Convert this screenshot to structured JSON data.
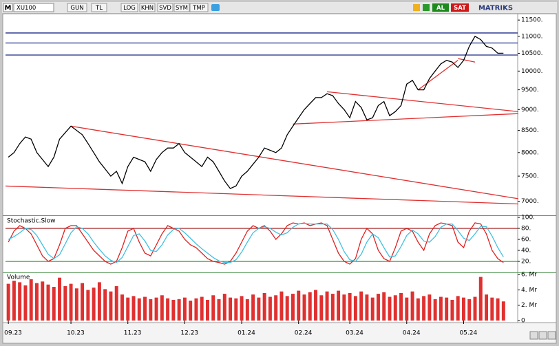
{
  "toolbar": {
    "logo": "M",
    "symbol": "XU100",
    "buttons": [
      "GUN",
      "TL",
      "LOG",
      "KHN",
      "SVD",
      "SYM",
      "TMP"
    ],
    "buy": "AL",
    "sell": "SAT",
    "brand": "MATRIKS"
  },
  "chart_data": [
    {
      "type": "line",
      "log_scale": true,
      "color": "#000000",
      "categories": [
        "09.23",
        null,
        null,
        null,
        null,
        null,
        null,
        null,
        null,
        null,
        null,
        "10.23",
        null,
        null,
        null,
        null,
        null,
        null,
        null,
        null,
        null,
        "11.23",
        null,
        null,
        null,
        null,
        null,
        null,
        null,
        null,
        null,
        "12.23",
        null,
        null,
        null,
        null,
        null,
        null,
        null,
        null,
        null,
        "01.24",
        null,
        null,
        null,
        null,
        null,
        null,
        null,
        null,
        null,
        "02.24",
        null,
        null,
        null,
        null,
        null,
        null,
        null,
        null,
        "03.24",
        null,
        null,
        null,
        null,
        null,
        null,
        null,
        null,
        null,
        "04.24",
        null,
        null,
        null,
        null,
        null,
        null,
        null,
        null,
        null,
        "05.24",
        null,
        null,
        null,
        null,
        null,
        null,
        null
      ],
      "values": [
        7900,
        8000,
        8200,
        8350,
        8300,
        8000,
        7850,
        7700,
        7900,
        8300,
        8450,
        8600,
        8500,
        8400,
        8200,
        8000,
        7800,
        7650,
        7500,
        7600,
        7350,
        7700,
        7900,
        7850,
        7800,
        7600,
        7850,
        8000,
        8100,
        8100,
        8200,
        8000,
        7900,
        7800,
        7700,
        7900,
        7800,
        7600,
        7400,
        7250,
        7300,
        7500,
        7600,
        7750,
        7900,
        8100,
        8050,
        8000,
        8100,
        8400,
        8600,
        8800,
        9000,
        9150,
        9300,
        9300,
        9400,
        9350,
        9150,
        9000,
        8800,
        9200,
        9050,
        8750,
        8800,
        9100,
        9200,
        8850,
        8950,
        9100,
        9650,
        9750,
        9500,
        9500,
        9800,
        10000,
        10200,
        10300,
        10250,
        10100,
        10300,
        10700,
        11000,
        10900,
        10700,
        10650,
        10500,
        10500
      ],
      "ylim": [
        6750,
        11700
      ],
      "yticks": [
        {
          "value": 11500,
          "label": "11500."
        },
        {
          "value": 11000,
          "label": "11000."
        },
        {
          "value": 10500,
          "label": "10500."
        },
        {
          "value": 10000,
          "label": "10000."
        },
        {
          "value": 9500,
          "label": "9500."
        },
        {
          "value": 9000,
          "label": "9000."
        },
        {
          "value": 8500,
          "label": "8500."
        },
        {
          "value": 8000,
          "label": "8000."
        },
        {
          "value": 7500,
          "label": "7500."
        },
        {
          "value": 7000,
          "label": "7000."
        }
      ],
      "hlines": [
        {
          "value": 11100,
          "color": "#1c2a88"
        },
        {
          "value": 10800,
          "color": "#1c2a88"
        },
        {
          "value": 10450,
          "color": "#1c2a88"
        }
      ],
      "trendlines": [
        {
          "color": "#e03030",
          "points": [
            [
              11,
              8600
            ],
            [
              89.6,
              7050
            ]
          ]
        },
        {
          "color": "#e03030",
          "points": [
            [
              -0.5,
              7300
            ],
            [
              89.6,
              6950
            ]
          ]
        },
        {
          "color": "#e03030",
          "points": [
            [
              56,
              9450
            ],
            [
              89.6,
              8950
            ]
          ]
        },
        {
          "color": "#e03030",
          "points": [
            [
              50,
              8650
            ],
            [
              89.6,
              8900
            ]
          ]
        },
        {
          "color": "#e03030",
          "points": [
            [
              72,
              9500
            ],
            [
              79,
              10300
            ]
          ]
        },
        {
          "color": "#e03030",
          "points": [
            [
              79,
              10350
            ],
            [
              82,
              10250
            ]
          ]
        }
      ]
    },
    {
      "type": "line",
      "title": "Stochastic.Slow",
      "series": [
        {
          "color": "#e02020",
          "values": [
            55,
            75,
            85,
            80,
            70,
            50,
            30,
            20,
            25,
            50,
            80,
            85,
            85,
            70,
            55,
            40,
            30,
            20,
            15,
            20,
            45,
            75,
            80,
            55,
            35,
            30,
            50,
            70,
            85,
            80,
            75,
            60,
            50,
            45,
            35,
            25,
            20,
            18,
            15,
            20,
            35,
            55,
            75,
            85,
            80,
            85,
            75,
            60,
            70,
            85,
            90,
            88,
            90,
            85,
            88,
            90,
            85,
            60,
            35,
            20,
            15,
            25,
            60,
            80,
            70,
            40,
            25,
            20,
            45,
            75,
            80,
            75,
            55,
            40,
            70,
            85,
            90,
            88,
            85,
            55,
            45,
            75,
            90,
            88,
            70,
            40,
            25,
            18
          ]
        },
        {
          "color": "#40c0e0",
          "values": [
            60,
            65,
            72,
            80,
            78,
            67,
            50,
            33,
            25,
            32,
            52,
            72,
            83,
            80,
            70,
            55,
            42,
            30,
            22,
            18,
            27,
            47,
            67,
            70,
            57,
            40,
            38,
            50,
            68,
            78,
            80,
            72,
            62,
            52,
            43,
            35,
            27,
            21,
            18,
            18,
            23,
            37,
            55,
            72,
            80,
            83,
            80,
            73,
            68,
            72,
            82,
            88,
            89,
            88,
            88,
            88,
            88,
            78,
            60,
            38,
            23,
            20,
            33,
            55,
            70,
            63,
            45,
            28,
            30,
            47,
            67,
            77,
            70,
            57,
            55,
            65,
            82,
            88,
            88,
            76,
            62,
            58,
            70,
            84,
            83,
            66,
            45,
            28
          ]
        }
      ],
      "ylim": [
        0,
        100
      ],
      "yticks": [
        {
          "value": 100,
          "label": "100."
        },
        {
          "value": 80,
          "label": "80."
        },
        {
          "value": 60,
          "label": "60."
        },
        {
          "value": 40,
          "label": "40."
        },
        {
          "value": 20,
          "label": "20."
        }
      ],
      "hlines": [
        {
          "value": 80,
          "color": "#a02020"
        },
        {
          "value": 20,
          "color": "#20a020"
        }
      ]
    },
    {
      "type": "bar",
      "title": "Volume",
      "color": "#e03030",
      "values": [
        4.8,
        5.2,
        5.0,
        4.6,
        5.4,
        4.9,
        5.1,
        4.7,
        4.4,
        5.6,
        4.5,
        4.8,
        4.2,
        4.9,
        4.0,
        4.3,
        5.0,
        4.1,
        3.8,
        4.5,
        3.4,
        3.0,
        3.2,
        2.9,
        3.1,
        2.8,
        3.0,
        3.3,
        2.9,
        2.7,
        2.8,
        3.0,
        2.6,
        2.9,
        3.1,
        2.7,
        3.3,
        2.8,
        3.5,
        3.0,
        2.9,
        3.2,
        2.8,
        3.4,
        3.0,
        3.6,
        3.1,
        3.3,
        3.8,
        3.2,
        3.5,
        3.9,
        3.4,
        3.7,
        4.0,
        3.3,
        3.8,
        3.5,
        3.9,
        3.4,
        3.6,
        3.2,
        3.8,
        3.4,
        3.0,
        3.5,
        3.7,
        3.1,
        3.3,
        3.6,
        3.0,
        3.8,
        2.9,
        3.2,
        3.4,
        2.8,
        3.1,
        3.0,
        2.7,
        3.2,
        3.0,
        2.8,
        3.1,
        5.7,
        3.4,
        3.0,
        2.9,
        2.5
      ],
      "ylim": [
        0,
        6.2
      ],
      "yticks": [
        {
          "value": 6,
          "label": "6. Mr"
        },
        {
          "value": 4,
          "label": "4. Mr"
        },
        {
          "value": 2,
          "label": "2. Mr"
        },
        0
      ]
    }
  ]
}
